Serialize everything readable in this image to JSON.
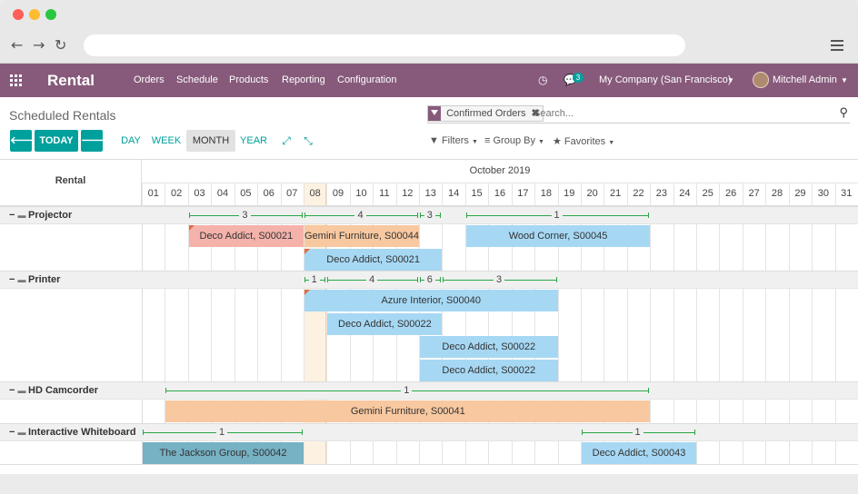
{
  "app": {
    "name": "Rental"
  },
  "topbar": {
    "menu": [
      "Orders",
      "Schedule",
      "Products",
      "Reporting",
      "Configuration"
    ],
    "chat_badge": "3",
    "company": "My Company (San Francisco)",
    "user": "Mitchell Admin"
  },
  "page": {
    "title": "Scheduled Rentals"
  },
  "toolbar": {
    "today": "TODAY",
    "scales": [
      "DAY",
      "WEEK",
      "MONTH",
      "YEAR"
    ],
    "active_scale": "MONTH"
  },
  "search": {
    "facet": "Confirmed Orders",
    "placeholder": "Search...",
    "filters": "Filters",
    "groupby": "Group By",
    "favorites": "Favorites"
  },
  "gantt": {
    "header_label": "Rental",
    "month": "October 2019",
    "days": [
      "01",
      "02",
      "03",
      "04",
      "05",
      "06",
      "07",
      "08",
      "09",
      "10",
      "11",
      "12",
      "13",
      "14",
      "15",
      "16",
      "17",
      "18",
      "19",
      "20",
      "21",
      "22",
      "23",
      "24",
      "25",
      "26",
      "27",
      "28",
      "29",
      "30",
      "31"
    ],
    "today_index": 7,
    "groups": [
      {
        "name": "Projector",
        "aggregates": [
          {
            "from": 2,
            "to": 7,
            "value": "3"
          },
          {
            "from": 7,
            "to": 12,
            "value": "4"
          },
          {
            "from": 12,
            "to": 13,
            "value": "3"
          },
          {
            "from": 14,
            "to": 22,
            "value": "1"
          }
        ],
        "rows": [
          [
            {
              "from": 2,
              "to": 7,
              "label": "Deco Addict, S00021",
              "color": "#f4b2ab",
              "warn": true
            },
            {
              "from": 7,
              "to": 12,
              "label": "Gemini Furniture, S00044",
              "color": "#f8c8a0",
              "warn": false
            },
            {
              "from": 14,
              "to": 22,
              "label": "Wood Corner, S00045",
              "color": "#a6d8f4",
              "warn": false
            }
          ],
          [
            {
              "from": 7,
              "to": 13,
              "label": "Deco Addict, S00021",
              "color": "#a6d8f4",
              "warn": true
            }
          ]
        ]
      },
      {
        "name": "Printer",
        "aggregates": [
          {
            "from": 7,
            "to": 8,
            "value": "1"
          },
          {
            "from": 8,
            "to": 12,
            "value": "4"
          },
          {
            "from": 12,
            "to": 13,
            "value": "6"
          },
          {
            "from": 13,
            "to": 18,
            "value": "3"
          }
        ],
        "rows": [
          [
            {
              "from": 7,
              "to": 18,
              "label": "Azure Interior, S00040",
              "color": "#a6d8f4",
              "warn": true
            }
          ],
          [
            {
              "from": 8,
              "to": 13,
              "label": "Deco Addict, S00022",
              "color": "#a6d8f4",
              "warn": false
            }
          ],
          [
            {
              "from": 12,
              "to": 18,
              "label": "Deco Addict, S00022",
              "color": "#a6d8f4",
              "warn": false
            }
          ],
          [
            {
              "from": 12,
              "to": 18,
              "label": "Deco Addict, S00022",
              "color": "#a6d8f4",
              "warn": false
            }
          ]
        ]
      },
      {
        "name": "HD Camcorder",
        "aggregates": [
          {
            "from": 1,
            "to": 22,
            "value": "1"
          }
        ],
        "rows": [
          [
            {
              "from": 1,
              "to": 22,
              "label": "Gemini Furniture, S00041",
              "color": "#f8c8a0",
              "warn": false
            }
          ]
        ]
      },
      {
        "name": "Interactive Whiteboard",
        "aggregates": [
          {
            "from": 0,
            "to": 7,
            "value": "1"
          },
          {
            "from": 19,
            "to": 24,
            "value": "1"
          }
        ],
        "rows": [
          [
            {
              "from": 0,
              "to": 7,
              "label": "The Jackson Group, S00042",
              "color": "#76b1c4",
              "warn": false
            },
            {
              "from": 19,
              "to": 24,
              "label": "Deco Addict, S00043",
              "color": "#a6d8f4",
              "warn": false
            }
          ]
        ]
      }
    ]
  },
  "colors": {
    "brand": "#875a7b",
    "primary": "#00a09d",
    "aggregate": "#28a745"
  }
}
